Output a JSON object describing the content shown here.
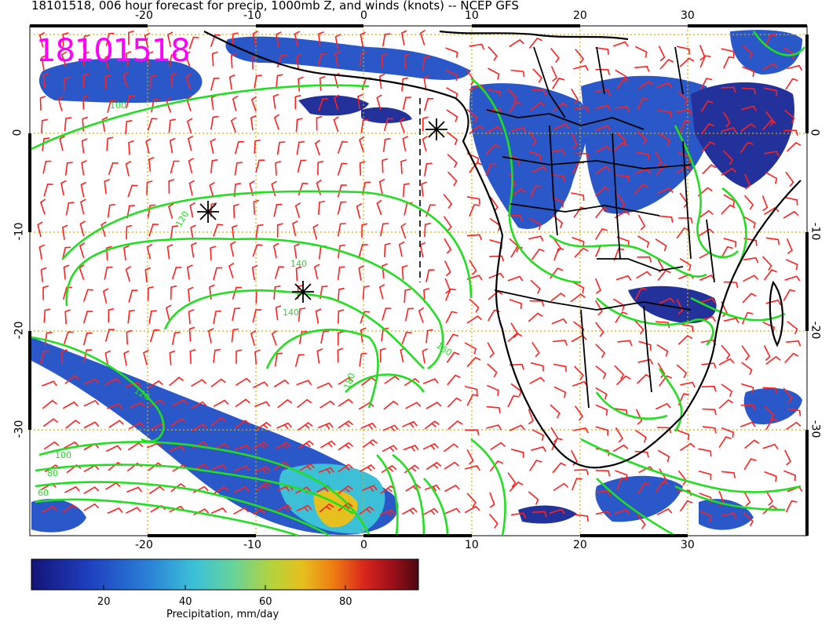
{
  "title": "18101518, 006 hour forecast for precip, 1000mb Z, and winds (knots) -- NCEP GFS",
  "stamp": "18101518",
  "x_ticks": [
    "-20",
    "-10",
    "0",
    "10",
    "20",
    "30"
  ],
  "y_ticks": [
    "0",
    "-10",
    "-20",
    "-30"
  ],
  "contour_labels": [
    "100",
    "120",
    "140",
    "160",
    "180",
    "100",
    "80",
    "60",
    "120",
    "140"
  ],
  "colorbar": {
    "ticks": [
      "20",
      "40",
      "60",
      "80"
    ],
    "label": "Precipitation, mm/day",
    "colors": [
      "#1a1a8c",
      "#1f3fbf",
      "#2a7fd6",
      "#3cc0d8",
      "#66d39a",
      "#b4d33c",
      "#e6c01e",
      "#ef7d12",
      "#d8261c",
      "#a0101a",
      "#5a0a10"
    ]
  },
  "colors": {
    "contour": "#22dd22",
    "barb": "#ff2020",
    "grid": "#d4b000",
    "coast": "#000000",
    "stamp": "#ff00ff"
  }
}
